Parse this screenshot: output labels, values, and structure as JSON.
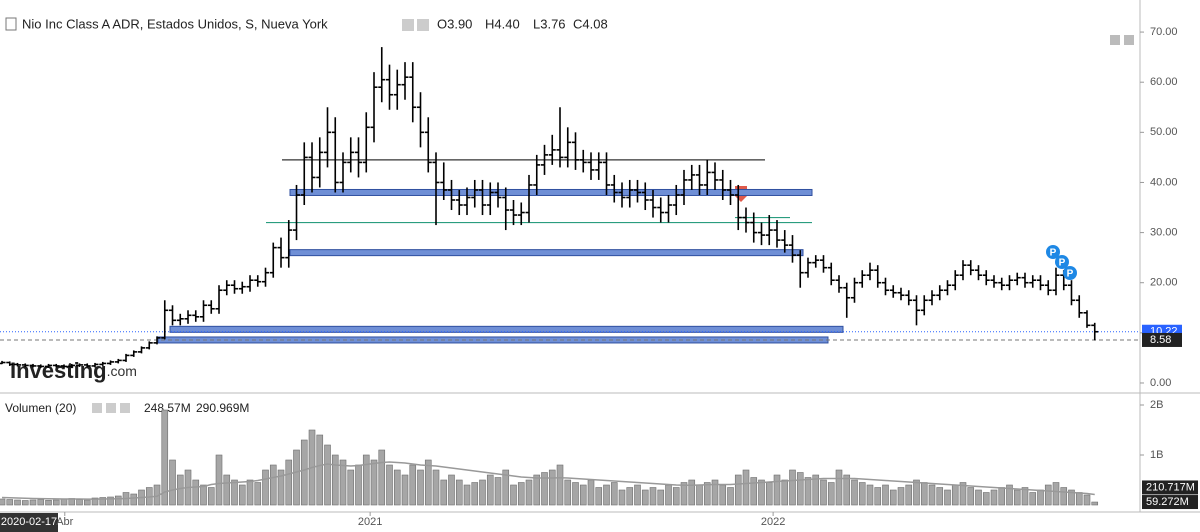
{
  "chart_data": {
    "type": "ohlc",
    "title": "Nio Inc Class A ADR, Estados Unidos, S, Nueva York",
    "readout": [
      "O3.90",
      "H4.40",
      "L3.76",
      "C4.08"
    ],
    "watermark": "Investing",
    "watermark_suffix": ".com",
    "crosshair_label": "2020-02-17",
    "color": "#000000",
    "xlim": [
      -0.26,
      146.84
    ],
    "xticks": [
      {
        "value": 8.1,
        "label": "Abr"
      },
      {
        "value": 47.5,
        "label": "2021"
      },
      {
        "value": 99.5,
        "label": "2022"
      }
    ],
    "ylim": [
      -2,
      74.8
    ],
    "yticks": [
      {
        "value": 0,
        "label": "0.00"
      },
      {
        "value": 10,
        "label": "10.00"
      },
      {
        "value": 20,
        "label": "20.00"
      },
      {
        "value": 30,
        "label": "30.00"
      },
      {
        "value": 40,
        "label": "40.00"
      },
      {
        "value": 50,
        "label": "50.00"
      },
      {
        "value": 60,
        "label": "60.00"
      },
      {
        "value": 70,
        "label": "70.00"
      }
    ],
    "open": [
      3.9,
      4.08,
      3.7,
      3.6,
      3.5,
      3.4,
      3.3,
      3.5,
      3.4,
      3.3,
      3.5,
      3.6,
      3.4,
      3.7,
      3.9,
      4.2,
      4.5,
      5.5,
      6.2,
      7.0,
      8.0,
      9.0,
      14.5,
      12.5,
      12.8,
      13.5,
      13.2,
      15.5,
      14.8,
      18.5,
      19.5,
      18.8,
      19.2,
      20.5,
      20.2,
      22.0,
      27.0,
      25.0,
      30.5,
      37.5,
      45.0,
      41.0,
      46.0,
      50.0,
      40.0,
      44.0,
      46.0,
      44.0,
      51.0,
      59.0,
      60.5,
      57.5,
      59.5,
      61.0,
      55.0,
      50.0,
      44.0,
      40.0,
      38.5,
      36.5,
      35.5,
      37.0,
      38.5,
      35.5,
      38.0,
      37.0,
      34.5,
      33.5,
      34.0,
      39.5,
      43.5,
      45.5,
      46.5,
      45.0,
      48.0,
      44.5,
      44.0,
      42.5,
      44.0,
      39.5,
      38.0,
      37.0,
      38.5,
      38.0,
      36.5,
      35.0,
      34.0,
      35.5,
      37.5,
      40.5,
      41.5,
      39.5,
      42.0,
      40.5,
      38.5,
      37.5,
      33.0,
      32.0,
      30.0,
      29.5,
      30.5,
      28.5,
      27.5,
      25.5,
      22.0,
      24.0,
      24.5,
      23.0,
      20.5,
      19.0,
      17.0,
      20.0,
      21.5,
      22.5,
      20.0,
      18.5,
      18.0,
      17.5,
      16.5,
      14.5,
      16.5,
      17.5,
      18.5,
      19.5,
      21.5,
      23.5,
      22.5,
      21.5,
      20.5,
      20.0,
      19.5,
      20.5,
      21.0,
      20.0,
      20.5,
      19.5,
      18.5,
      21.5,
      19.5,
      16.5,
      14.0,
      11.5
    ],
    "high": [
      4.4,
      4.3,
      4.0,
      3.9,
      3.8,
      3.7,
      3.8,
      3.8,
      3.7,
      3.8,
      3.9,
      3.9,
      4.0,
      4.2,
      4.5,
      4.8,
      5.8,
      6.5,
      7.3,
      8.3,
      9.3,
      16.5,
      15.5,
      13.8,
      14.5,
      14.5,
      16.5,
      16.5,
      19.5,
      20.5,
      20.5,
      20.2,
      21.5,
      21.5,
      23.0,
      28.0,
      29.0,
      32.5,
      39.5,
      48.0,
      48.0,
      49.0,
      55.0,
      53.0,
      46.0,
      49.0,
      49.0,
      54.0,
      62.0,
      67.0,
      63.5,
      62.5,
      64.0,
      64.0,
      58.0,
      53.0,
      46.0,
      44.0,
      40.5,
      38.5,
      39.0,
      40.5,
      40.5,
      40.0,
      40.0,
      39.0,
      36.5,
      36.0,
      41.5,
      45.5,
      47.5,
      49.5,
      55.0,
      51.0,
      50.0,
      46.5,
      46.0,
      46.0,
      46.0,
      41.5,
      40.0,
      40.5,
      40.5,
      40.0,
      38.5,
      37.0,
      37.5,
      39.5,
      42.5,
      43.5,
      43.5,
      44.5,
      44.0,
      42.5,
      40.5,
      39.5,
      35.0,
      34.0,
      32.0,
      33.5,
      32.5,
      30.5,
      29.5,
      26.5,
      25.0,
      25.5,
      25.5,
      24.0,
      21.5,
      20.0,
      21.0,
      22.5,
      24.0,
      23.5,
      21.0,
      19.5,
      19.0,
      18.5,
      17.5,
      17.5,
      18.5,
      19.5,
      20.5,
      22.5,
      24.5,
      24.5,
      23.5,
      22.5,
      21.5,
      21.0,
      21.5,
      22.0,
      22.0,
      21.5,
      21.5,
      20.5,
      23.0,
      22.5,
      20.5,
      17.5,
      14.5,
      12.0
    ],
    "low": [
      3.76,
      3.4,
      3.3,
      3.2,
      3.1,
      3.0,
      3.0,
      3.1,
      3.0,
      3.0,
      3.2,
      3.1,
      3.1,
      3.4,
      3.6,
      3.9,
      4.2,
      5.2,
      5.9,
      6.7,
      7.7,
      8.7,
      11.5,
      11.5,
      11.8,
      12.2,
      12.2,
      13.8,
      13.8,
      17.5,
      17.8,
      17.8,
      18.2,
      19.2,
      19.2,
      21.0,
      23.0,
      23.0,
      28.5,
      35.5,
      38.0,
      39.0,
      43.0,
      38.0,
      38.0,
      42.0,
      41.0,
      42.0,
      48.0,
      56.0,
      54.5,
      54.5,
      56.5,
      52.0,
      47.0,
      42.0,
      31.5,
      36.5,
      34.5,
      33.5,
      33.5,
      35.0,
      33.5,
      33.5,
      35.0,
      30.5,
      31.5,
      31.5,
      32.0,
      37.5,
      41.5,
      43.5,
      43.0,
      43.0,
      42.5,
      42.0,
      40.5,
      40.5,
      37.5,
      36.0,
      35.0,
      35.0,
      36.0,
      34.5,
      33.0,
      32.0,
      32.0,
      33.5,
      35.5,
      38.5,
      37.5,
      37.5,
      38.5,
      36.5,
      35.5,
      30.5,
      30.0,
      28.0,
      27.5,
      27.5,
      27.0,
      26.0,
      24.0,
      19.0,
      21.0,
      23.0,
      22.0,
      19.5,
      18.0,
      13.0,
      16.0,
      19.0,
      20.5,
      19.0,
      17.5,
      17.0,
      16.5,
      15.5,
      11.5,
      13.5,
      15.5,
      16.5,
      17.5,
      18.5,
      20.5,
      21.5,
      20.5,
      19.5,
      19.0,
      18.5,
      18.5,
      19.5,
      19.0,
      19.0,
      18.5,
      17.5,
      17.5,
      18.5,
      15.5,
      13.0,
      11.0,
      8.5
    ],
    "close": [
      4.08,
      3.7,
      3.6,
      3.5,
      3.4,
      3.3,
      3.5,
      3.4,
      3.3,
      3.5,
      3.6,
      3.4,
      3.7,
      3.9,
      4.2,
      4.5,
      5.5,
      6.2,
      7.0,
      8.0,
      9.0,
      14.5,
      12.5,
      12.8,
      13.5,
      13.2,
      15.5,
      14.8,
      18.5,
      19.5,
      18.8,
      19.2,
      20.5,
      20.2,
      22.0,
      27.0,
      25.0,
      30.5,
      37.5,
      45.0,
      41.0,
      46.0,
      50.0,
      40.0,
      44.0,
      46.0,
      44.0,
      51.0,
      59.0,
      60.5,
      57.5,
      59.5,
      61.0,
      55.0,
      50.0,
      44.0,
      40.0,
      38.5,
      36.5,
      35.5,
      37.0,
      38.5,
      35.5,
      38.0,
      37.0,
      34.5,
      33.5,
      34.0,
      39.5,
      43.5,
      45.5,
      46.5,
      45.0,
      48.0,
      44.5,
      44.0,
      42.5,
      44.0,
      39.5,
      38.0,
      37.0,
      38.5,
      38.0,
      36.5,
      35.0,
      34.0,
      35.5,
      37.5,
      40.5,
      41.5,
      39.5,
      42.0,
      40.5,
      38.5,
      37.5,
      33.0,
      32.0,
      30.0,
      29.5,
      30.5,
      28.5,
      27.5,
      25.5,
      22.0,
      24.0,
      24.5,
      23.0,
      20.5,
      19.0,
      17.0,
      20.0,
      21.5,
      22.5,
      20.0,
      18.5,
      18.0,
      17.5,
      16.5,
      14.5,
      16.5,
      17.5,
      18.5,
      19.5,
      21.5,
      23.5,
      22.5,
      21.5,
      20.5,
      20.0,
      19.5,
      20.5,
      21.0,
      20.0,
      20.5,
      19.5,
      18.5,
      21.5,
      19.5,
      16.5,
      14.0,
      11.5,
      10.22
    ],
    "last_price": {
      "value": 10.22,
      "label": "10.22",
      "color": "#2962ff"
    },
    "level_label": {
      "value": 8.58,
      "label": "8.58"
    },
    "levels": [
      {
        "value": 44.5,
        "style": "line",
        "color": "#333333"
      },
      {
        "value": 38,
        "style": "band",
        "color": "#6f8fd6"
      },
      {
        "value": 32,
        "style": "line",
        "color": "#2a9d7f"
      },
      {
        "value": 33,
        "style": "line",
        "color": "#2a9d7f"
      },
      {
        "value": 26,
        "style": "band",
        "color": "#6f8fd6"
      },
      {
        "value": 10.7,
        "style": "band",
        "color": "#6f8fd6"
      },
      {
        "value": 8.58,
        "style": "band",
        "color": "#6f8fd6"
      }
    ],
    "event_labels": [
      "P",
      "P",
      "P"
    ],
    "volume": {
      "title": "Volumen (20)",
      "readout": [
        "248.57M",
        "290.969M"
      ],
      "color": "#a6a6a6",
      "ylim": [
        0,
        2200
      ],
      "yticks": [
        {
          "value": 1000,
          "label": "1B"
        },
        {
          "value": 2000,
          "label": "2B"
        }
      ],
      "values": [
        120,
        110,
        100,
        90,
        100,
        110,
        95,
        100,
        120,
        130,
        110,
        100,
        140,
        150,
        160,
        180,
        250,
        220,
        300,
        350,
        400,
        1900,
        900,
        600,
        700,
        500,
        400,
        350,
        1000,
        600,
        500,
        400,
        500,
        450,
        700,
        800,
        700,
        900,
        1100,
        1300,
        1500,
        1400,
        1200,
        1000,
        900,
        700,
        800,
        1000,
        900,
        1100,
        800,
        700,
        600,
        800,
        700,
        900,
        700,
        500,
        600,
        500,
        400,
        450,
        500,
        600,
        550,
        700,
        400,
        450,
        500,
        600,
        650,
        700,
        800,
        500,
        450,
        400,
        500,
        350,
        400,
        450,
        300,
        350,
        400,
        300,
        350,
        300,
        400,
        350,
        450,
        500,
        400,
        450,
        500,
        400,
        350,
        600,
        700,
        550,
        500,
        450,
        600,
        500,
        700,
        650,
        550,
        600,
        500,
        450,
        700,
        600,
        500,
        450,
        400,
        350,
        400,
        300,
        350,
        400,
        500,
        450,
        400,
        350,
        300,
        400,
        450,
        350,
        300,
        250,
        300,
        350,
        400,
        300,
        350,
        250,
        300,
        400,
        450,
        350,
        300,
        250,
        200,
        59.272
      ],
      "ma": {
        "color": "#999999",
        "values": [
          150,
          145,
          140,
          135,
          130,
          128,
          125,
          122,
          120,
          120,
          120,
          118,
          118,
          120,
          122,
          125,
          130,
          140,
          150,
          160,
          175,
          260,
          300,
          330,
          350,
          360,
          370,
          410,
          430,
          440,
          450,
          460,
          470,
          490,
          520,
          550,
          580,
          620,
          660,
          700,
          750,
          790,
          820,
          800,
          790,
          780,
          790,
          810,
          830,
          850,
          860,
          850,
          840,
          820,
          800,
          790,
          780,
          760,
          740,
          720,
          700,
          680,
          660,
          640,
          620,
          600,
          580,
          560,
          550,
          540,
          540,
          540,
          545,
          540,
          530,
          520,
          510,
          500,
          490,
          480,
          470,
          460,
          450,
          440,
          430,
          420,
          410,
          400,
          395,
          395,
          400,
          405,
          410,
          410,
          410,
          420,
          430,
          440,
          450,
          460,
          470,
          480,
          490,
          500,
          510,
          520,
          530,
          530,
          530,
          530,
          530,
          520,
          510,
          500,
          490,
          480,
          470,
          460,
          450,
          440,
          430,
          420,
          410,
          400,
          390,
          380,
          370,
          360,
          350,
          340,
          330,
          320,
          310,
          300,
          290,
          280,
          270,
          260,
          250,
          240,
          230,
          210.717
        ]
      },
      "last": {
        "value": 59.272,
        "label": "59.272M"
      },
      "ma_last": {
        "value": 210.717,
        "label": "210.717M"
      }
    }
  }
}
